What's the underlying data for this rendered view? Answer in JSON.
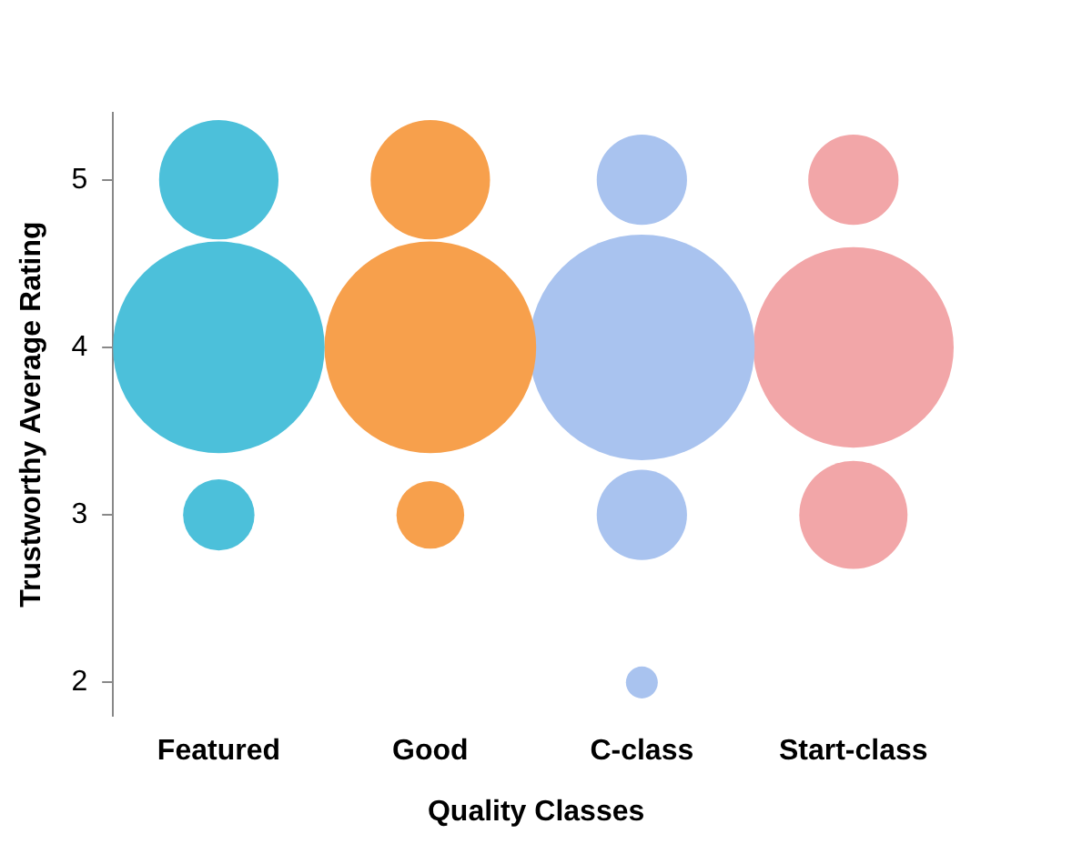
{
  "chart_data": {
    "type": "bubble",
    "xlabel": "Quality Classes",
    "ylabel": "Trustworthy Average Rating",
    "categories": [
      "Featured",
      "Good",
      "C-class",
      "Start-class"
    ],
    "ylim": [
      1.8,
      5.4
    ],
    "yticks": [
      2,
      3,
      4,
      5
    ],
    "grid": false,
    "legend": false,
    "series": [
      {
        "color": "#4cc0da",
        "x": [
          "Featured",
          "Featured",
          "Featured"
        ],
        "values": [
          5,
          4,
          3
        ],
        "sizes": [
          0.28,
          0.88,
          0.1
        ]
      },
      {
        "color": "#f7a04c",
        "x": [
          "Good",
          "Good",
          "Good"
        ],
        "values": [
          5,
          4,
          3
        ],
        "sizes": [
          0.28,
          0.88,
          0.09
        ]
      },
      {
        "color": "#a9c3ef",
        "x": [
          "C-class",
          "C-class",
          "C-class",
          "C-class"
        ],
        "values": [
          5,
          4,
          3,
          2
        ],
        "sizes": [
          0.16,
          1,
          0.16,
          0.02
        ]
      },
      {
        "color": "#f2a6a8",
        "x": [
          "Start-class",
          "Start-class",
          "Start-class"
        ],
        "values": [
          5,
          4,
          3
        ],
        "sizes": [
          0.16,
          0.79,
          0.23
        ]
      }
    ]
  }
}
